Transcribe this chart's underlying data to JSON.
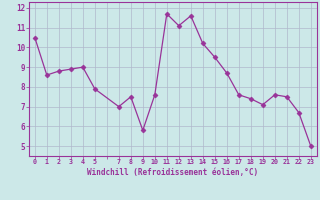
{
  "x": [
    0,
    1,
    2,
    3,
    4,
    5,
    7,
    8,
    9,
    10,
    11,
    12,
    13,
    14,
    15,
    16,
    17,
    18,
    19,
    20,
    21,
    22,
    23
  ],
  "y": [
    10.5,
    8.6,
    8.8,
    8.9,
    9.0,
    7.9,
    7.0,
    7.5,
    5.8,
    7.6,
    11.7,
    11.1,
    11.6,
    10.2,
    9.5,
    8.7,
    7.6,
    7.4,
    7.1,
    7.6,
    7.5,
    6.7,
    5.0
  ],
  "line_color": "#993399",
  "marker": "D",
  "marker_size": 2.5,
  "bg_color": "#cce8e8",
  "grid_color": "#b0b8cc",
  "xlabel": "Windchill (Refroidissement éolien,°C)",
  "xlabel_color": "#993399",
  "tick_color": "#993399",
  "ylim": [
    4.5,
    12.3
  ],
  "xlim": [
    -0.5,
    23.5
  ],
  "yticks": [
    5,
    6,
    7,
    8,
    9,
    10,
    11,
    12
  ],
  "xtick_labels": [
    "0",
    "1",
    "2",
    "3",
    "4",
    "5",
    "",
    "7",
    "8",
    "9",
    "10",
    "11",
    "12",
    "13",
    "14",
    "15",
    "16",
    "17",
    "18",
    "19",
    "20",
    "21",
    "22",
    "23"
  ],
  "xtick_positions": [
    0,
    1,
    2,
    3,
    4,
    5,
    6,
    7,
    8,
    9,
    10,
    11,
    12,
    13,
    14,
    15,
    16,
    17,
    18,
    19,
    20,
    21,
    22,
    23
  ]
}
